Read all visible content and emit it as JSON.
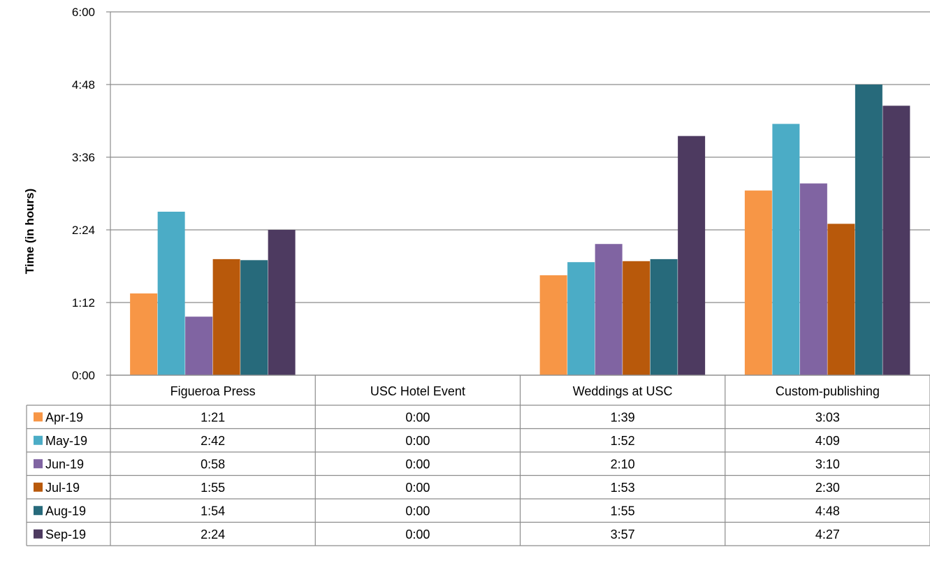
{
  "chart_data": {
    "type": "bar",
    "ylabel": "Time (in hours)",
    "y_unit": "hours (h:mm)",
    "ylim": [
      0,
      6
    ],
    "y_ticks": [
      0,
      1.2,
      2.4,
      3.6,
      4.8,
      6.0
    ],
    "y_tick_labels": [
      "0:00",
      "1:12",
      "2:24",
      "3:36",
      "4:48",
      "6:00"
    ],
    "grid": true,
    "legend_placement": "data-table-left",
    "categories": [
      "Figueroa Press",
      "USC Hotel Event",
      "Weddings at USC",
      "Custom-publishing"
    ],
    "series": [
      {
        "name": "Apr-19",
        "color": "#F79646",
        "values": [
          1.35,
          0,
          1.65,
          3.05
        ],
        "labels": [
          "1:21",
          "0:00",
          "1:39",
          "3:03"
        ]
      },
      {
        "name": "May-19",
        "color": "#4BACC6",
        "values": [
          2.7,
          0,
          1.8667,
          4.15
        ],
        "labels": [
          "2:42",
          "0:00",
          "1:52",
          "4:09"
        ]
      },
      {
        "name": "Jun-19",
        "color": "#8064A2",
        "values": [
          0.9667,
          0,
          2.1667,
          3.1667
        ],
        "labels": [
          "0:58",
          "0:00",
          "2:10",
          "3:10"
        ]
      },
      {
        "name": "Jul-19",
        "color": "#B8590B",
        "values": [
          1.9167,
          0,
          1.8833,
          2.5
        ],
        "labels": [
          "1:55",
          "0:00",
          "1:53",
          "2:30"
        ]
      },
      {
        "name": "Aug-19",
        "color": "#276A7B",
        "values": [
          1.9,
          0,
          1.9167,
          4.8
        ],
        "labels": [
          "1:54",
          "0:00",
          "1:55",
          "4:48"
        ]
      },
      {
        "name": "Sep-19",
        "color": "#4D3A60",
        "values": [
          2.4,
          0,
          3.95,
          4.45
        ],
        "labels": [
          "2:24",
          "0:00",
          "3:57",
          "4:27"
        ]
      }
    ]
  }
}
